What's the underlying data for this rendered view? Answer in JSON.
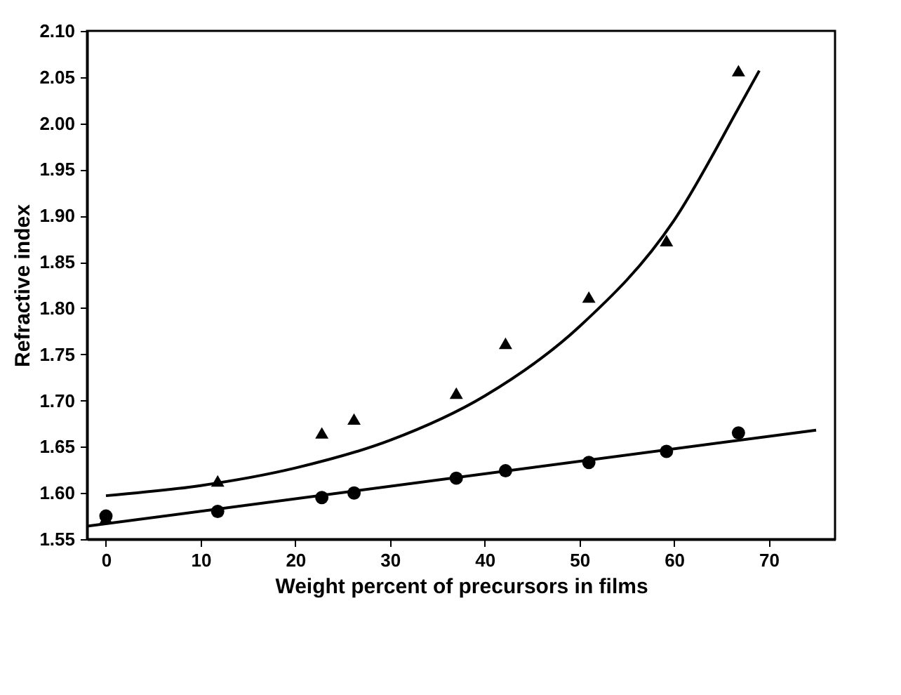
{
  "chart_data": {
    "type": "scatter",
    "xlabel": "Weight percent of precursors in films",
    "ylabel": "Refractive index",
    "xlim": [
      -2,
      77
    ],
    "xticks": [
      0,
      10,
      20,
      30,
      40,
      50,
      60,
      70
    ],
    "ylim": [
      1.55,
      2.1
    ],
    "yticks": [
      {
        "value": 1.55,
        "label": "1.55"
      },
      {
        "value": 1.6,
        "label": "1.60"
      },
      {
        "value": 1.65,
        "label": "1.65"
      },
      {
        "value": 1.7,
        "label": "1.70"
      },
      {
        "value": 1.75,
        "label": "1.75"
      },
      {
        "value": 1.8,
        "label": "1.80"
      },
      {
        "value": 1.85,
        "label": "1.85"
      },
      {
        "value": 1.9,
        "label": "1.90"
      },
      {
        "value": 1.95,
        "label": "1.95"
      },
      {
        "value": 2.0,
        "label": "2.00"
      },
      {
        "value": 2.05,
        "label": "2.05"
      },
      {
        "value": 2.1,
        "label": "2.10"
      }
    ],
    "grid": false,
    "series": [
      {
        "type": "line",
        "color": "#000000",
        "marker": "none",
        "x": [
          0,
          10,
          20,
          30,
          40,
          50,
          60,
          67,
          69
        ],
        "values": [
          1.597,
          1.608,
          1.627,
          1.657,
          1.705,
          1.78,
          1.895,
          2.02,
          2.057
        ]
      },
      {
        "type": "line",
        "color": "#000000",
        "marker": "none",
        "x": [
          -2,
          75
        ],
        "values": [
          1.564,
          1.668
        ]
      },
      {
        "type": "scatter",
        "color": "#000000",
        "marker": "circle",
        "x": [
          0,
          11.8,
          22.8,
          26.2,
          37,
          42.2,
          51,
          59.2,
          66.8
        ],
        "values": [
          1.575,
          1.58,
          1.595,
          1.6,
          1.616,
          1.624,
          1.633,
          1.645,
          1.665
        ]
      },
      {
        "type": "scatter",
        "color": "#000000",
        "marker": "triangle",
        "x": [
          0,
          11.8,
          22.8,
          26.2,
          37,
          42.2,
          51,
          59.2,
          66.8
        ],
        "values": [
          1.573,
          1.613,
          1.665,
          1.68,
          1.708,
          1.762,
          1.812,
          1.873,
          2.057
        ]
      }
    ]
  }
}
